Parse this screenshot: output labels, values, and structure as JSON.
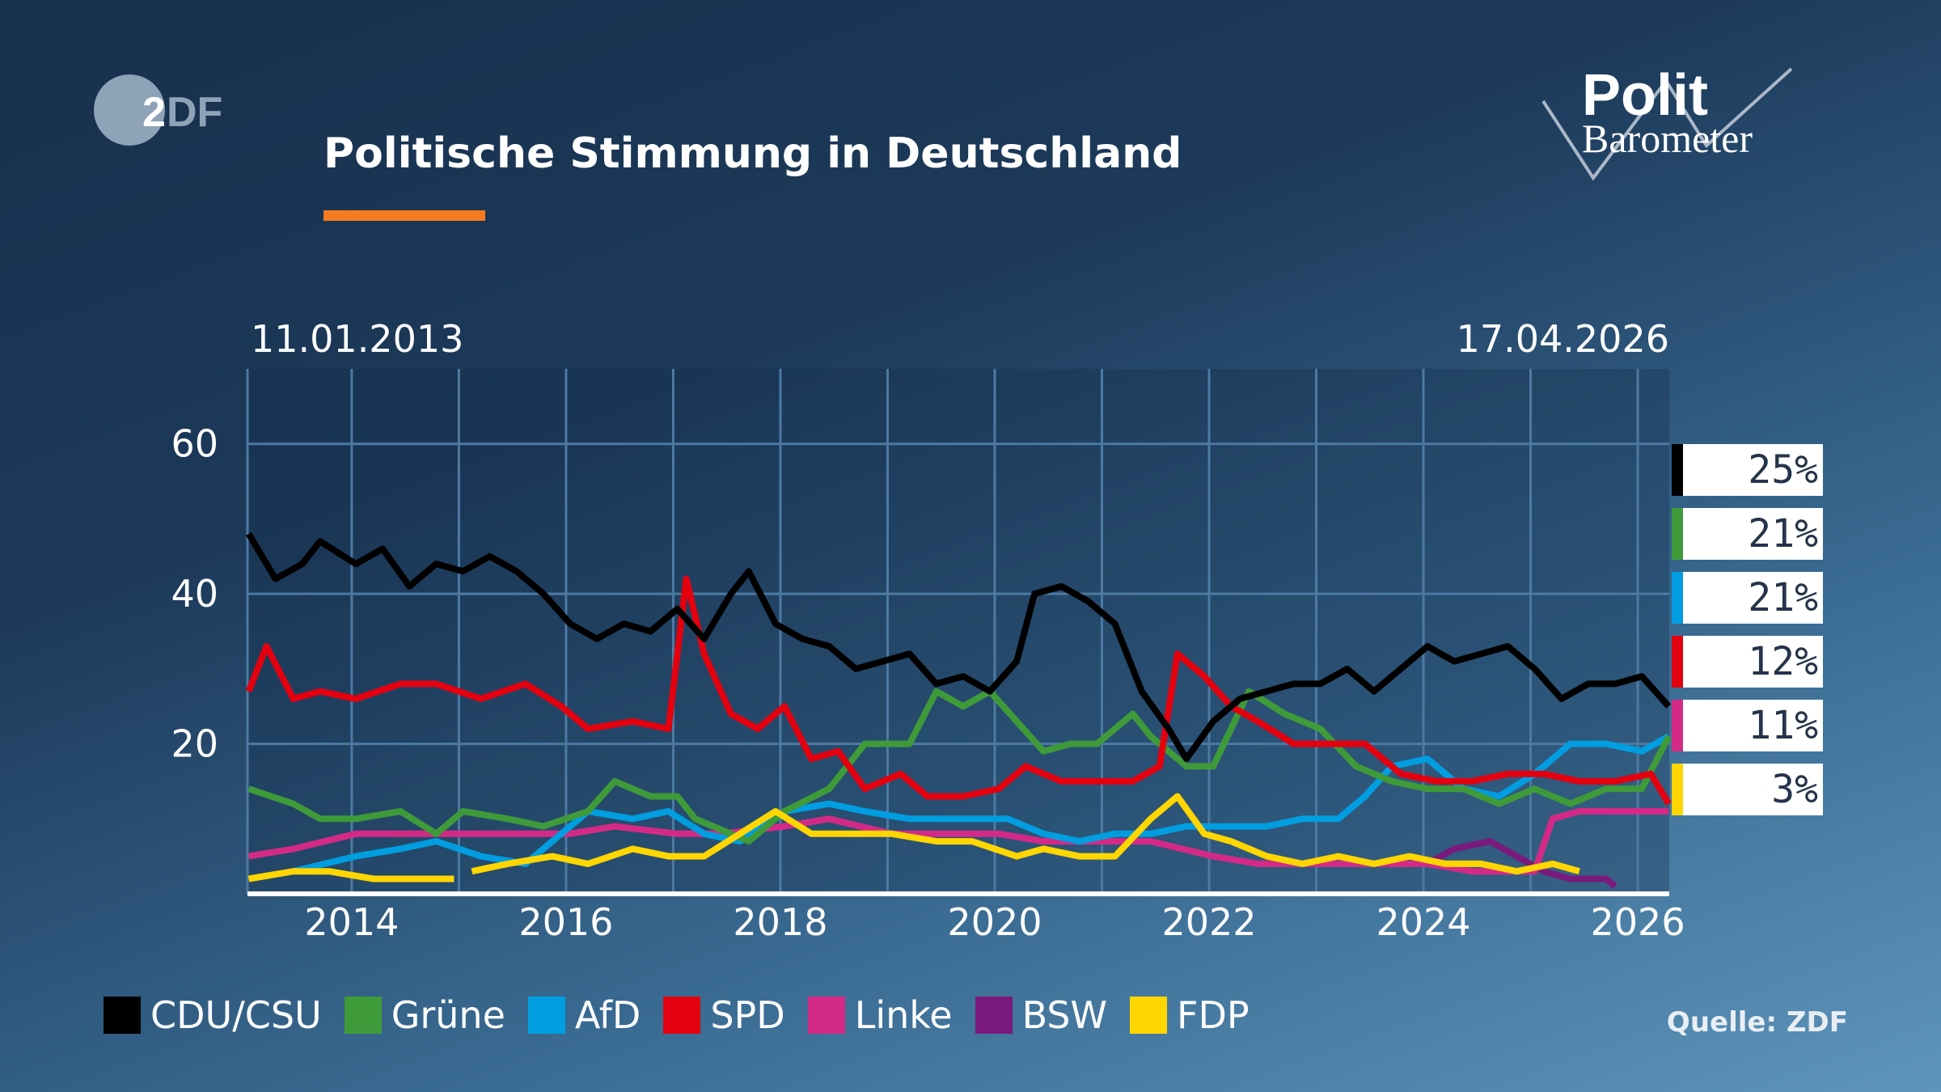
{
  "header": {
    "title": "Politische Stimmung in Deutschland",
    "accent_color": "#f47b20"
  },
  "logos": {
    "broadcaster": "ZDF",
    "program_line1": "Polit",
    "program_line2": "Barometer"
  },
  "source": "Quelle: ZDF",
  "chart_data": {
    "type": "line",
    "title": "Politische Stimmung in Deutschland",
    "start_label": "11.01.2013",
    "end_label": "17.04.2026",
    "x_range": [
      "2013-01-11",
      "2026-04-17"
    ],
    "x_ticks": [
      "2014",
      "2016",
      "2018",
      "2020",
      "2022",
      "2024",
      "2026"
    ],
    "y_ticks": [
      20,
      40,
      60
    ],
    "ylim": [
      0,
      70
    ],
    "grid": true,
    "legend_placement": "bottom",
    "series": [
      {
        "name": "CDU/CSU",
        "color": "#000000",
        "current": "25%",
        "points": [
          [
            "2013-01",
            48
          ],
          [
            "2013-04",
            42
          ],
          [
            "2013-07",
            44
          ],
          [
            "2013-09",
            47
          ],
          [
            "2014-01",
            44
          ],
          [
            "2014-04",
            46
          ],
          [
            "2014-07",
            41
          ],
          [
            "2014-10",
            44
          ],
          [
            "2015-01",
            43
          ],
          [
            "2015-04",
            45
          ],
          [
            "2015-07",
            43
          ],
          [
            "2015-10",
            40
          ],
          [
            "2016-01",
            36
          ],
          [
            "2016-04",
            34
          ],
          [
            "2016-07",
            36
          ],
          [
            "2016-10",
            35
          ],
          [
            "2017-01",
            38
          ],
          [
            "2017-04",
            34
          ],
          [
            "2017-07",
            40
          ],
          [
            "2017-09",
            43
          ],
          [
            "2017-12",
            36
          ],
          [
            "2018-03",
            34
          ],
          [
            "2018-06",
            33
          ],
          [
            "2018-09",
            30
          ],
          [
            "2018-12",
            31
          ],
          [
            "2019-03",
            32
          ],
          [
            "2019-06",
            28
          ],
          [
            "2019-09",
            29
          ],
          [
            "2019-12",
            27
          ],
          [
            "2020-03",
            31
          ],
          [
            "2020-05",
            40
          ],
          [
            "2020-08",
            41
          ],
          [
            "2020-11",
            39
          ],
          [
            "2021-02",
            36
          ],
          [
            "2021-05",
            27
          ],
          [
            "2021-08",
            22
          ],
          [
            "2021-10",
            18
          ],
          [
            "2022-01",
            23
          ],
          [
            "2022-04",
            26
          ],
          [
            "2022-07",
            27
          ],
          [
            "2022-10",
            28
          ],
          [
            "2023-01",
            28
          ],
          [
            "2023-04",
            30
          ],
          [
            "2023-07",
            27
          ],
          [
            "2023-10",
            30
          ],
          [
            "2024-01",
            33
          ],
          [
            "2024-04",
            31
          ],
          [
            "2024-07",
            32
          ],
          [
            "2024-10",
            33
          ],
          [
            "2025-01",
            30
          ],
          [
            "2025-04",
            26
          ],
          [
            "2025-07",
            28
          ],
          [
            "2025-10",
            28
          ],
          [
            "2026-01",
            29
          ],
          [
            "2026-04",
            25
          ]
        ]
      },
      {
        "name": "Grüne",
        "color": "#3f9a3a",
        "current": "21%",
        "points": [
          [
            "2013-01",
            14
          ],
          [
            "2013-06",
            12
          ],
          [
            "2013-09",
            10
          ],
          [
            "2014-01",
            10
          ],
          [
            "2014-06",
            11
          ],
          [
            "2014-10",
            8
          ],
          [
            "2015-01",
            11
          ],
          [
            "2015-06",
            10
          ],
          [
            "2015-10",
            9
          ],
          [
            "2016-03",
            11
          ],
          [
            "2016-06",
            15
          ],
          [
            "2016-10",
            13
          ],
          [
            "2017-01",
            13
          ],
          [
            "2017-03",
            10
          ],
          [
            "2017-09",
            7
          ],
          [
            "2018-01",
            11
          ],
          [
            "2018-06",
            14
          ],
          [
            "2018-10",
            20
          ],
          [
            "2019-03",
            20
          ],
          [
            "2019-06",
            27
          ],
          [
            "2019-09",
            25
          ],
          [
            "2019-12",
            27
          ],
          [
            "2020-03",
            23
          ],
          [
            "2020-06",
            19
          ],
          [
            "2020-09",
            20
          ],
          [
            "2020-12",
            20
          ],
          [
            "2021-04",
            24
          ],
          [
            "2021-06",
            21
          ],
          [
            "2021-10",
            17
          ],
          [
            "2022-01",
            17
          ],
          [
            "2022-05",
            27
          ],
          [
            "2022-09",
            24
          ],
          [
            "2023-01",
            22
          ],
          [
            "2023-05",
            17
          ],
          [
            "2023-09",
            15
          ],
          [
            "2024-01",
            14
          ],
          [
            "2024-05",
            14
          ],
          [
            "2024-09",
            12
          ],
          [
            "2025-01",
            14
          ],
          [
            "2025-05",
            12
          ],
          [
            "2025-09",
            14
          ],
          [
            "2026-01",
            14
          ],
          [
            "2026-04",
            21
          ]
        ]
      },
      {
        "name": "AfD",
        "color": "#009ee0",
        "current": "21%",
        "points": [
          [
            "2013-06",
            3
          ],
          [
            "2014-01",
            5
          ],
          [
            "2014-06",
            6
          ],
          [
            "2014-10",
            7
          ],
          [
            "2015-03",
            5
          ],
          [
            "2015-08",
            4
          ],
          [
            "2015-11",
            7
          ],
          [
            "2016-03",
            11
          ],
          [
            "2016-08",
            10
          ],
          [
            "2016-12",
            11
          ],
          [
            "2017-04",
            8
          ],
          [
            "2017-08",
            7
          ],
          [
            "2018-01",
            11
          ],
          [
            "2018-06",
            12
          ],
          [
            "2018-10",
            11
          ],
          [
            "2019-03",
            10
          ],
          [
            "2019-06",
            10
          ],
          [
            "2019-10",
            10
          ],
          [
            "2020-02",
            10
          ],
          [
            "2020-06",
            8
          ],
          [
            "2020-10",
            7
          ],
          [
            "2021-02",
            8
          ],
          [
            "2021-06",
            8
          ],
          [
            "2021-10",
            9
          ],
          [
            "2022-03",
            9
          ],
          [
            "2022-07",
            9
          ],
          [
            "2022-11",
            10
          ],
          [
            "2023-03",
            10
          ],
          [
            "2023-06",
            13
          ],
          [
            "2023-09",
            17
          ],
          [
            "2024-01",
            18
          ],
          [
            "2024-05",
            14
          ],
          [
            "2024-09",
            13
          ],
          [
            "2025-01",
            16
          ],
          [
            "2025-05",
            20
          ],
          [
            "2025-09",
            20
          ],
          [
            "2026-01",
            19
          ],
          [
            "2026-04",
            21
          ]
        ]
      },
      {
        "name": "SPD",
        "color": "#e3000f",
        "current": "12%",
        "points": [
          [
            "2013-01",
            27
          ],
          [
            "2013-03",
            33
          ],
          [
            "2013-06",
            26
          ],
          [
            "2013-09",
            27
          ],
          [
            "2014-01",
            26
          ],
          [
            "2014-06",
            28
          ],
          [
            "2014-10",
            28
          ],
          [
            "2015-03",
            26
          ],
          [
            "2015-08",
            28
          ],
          [
            "2015-12",
            25
          ],
          [
            "2016-03",
            22
          ],
          [
            "2016-08",
            23
          ],
          [
            "2016-12",
            22
          ],
          [
            "2017-02",
            42
          ],
          [
            "2017-04",
            32
          ],
          [
            "2017-07",
            24
          ],
          [
            "2017-10",
            22
          ],
          [
            "2018-01",
            25
          ],
          [
            "2018-04",
            18
          ],
          [
            "2018-07",
            19
          ],
          [
            "2018-10",
            14
          ],
          [
            "2019-02",
            16
          ],
          [
            "2019-05",
            13
          ],
          [
            "2019-09",
            13
          ],
          [
            "2020-01",
            14
          ],
          [
            "2020-04",
            17
          ],
          [
            "2020-08",
            15
          ],
          [
            "2020-12",
            15
          ],
          [
            "2021-04",
            15
          ],
          [
            "2021-07",
            17
          ],
          [
            "2021-09",
            32
          ],
          [
            "2021-12",
            29
          ],
          [
            "2022-03",
            25
          ],
          [
            "2022-06",
            23
          ],
          [
            "2022-10",
            20
          ],
          [
            "2023-02",
            20
          ],
          [
            "2023-06",
            20
          ],
          [
            "2023-10",
            16
          ],
          [
            "2024-02",
            15
          ],
          [
            "2024-06",
            15
          ],
          [
            "2024-10",
            16
          ],
          [
            "2025-02",
            16
          ],
          [
            "2025-06",
            15
          ],
          [
            "2025-10",
            15
          ],
          [
            "2026-02",
            16
          ],
          [
            "2026-04",
            12
          ]
        ]
      },
      {
        "name": "Linke",
        "color": "#d42a87",
        "current": "11%",
        "points": [
          [
            "2013-01",
            5
          ],
          [
            "2013-06",
            6
          ],
          [
            "2014-01",
            8
          ],
          [
            "2014-06",
            8
          ],
          [
            "2015-01",
            8
          ],
          [
            "2015-06",
            8
          ],
          [
            "2016-01",
            8
          ],
          [
            "2016-06",
            9
          ],
          [
            "2017-01",
            8
          ],
          [
            "2017-06",
            8
          ],
          [
            "2018-01",
            9
          ],
          [
            "2018-06",
            10
          ],
          [
            "2019-01",
            8
          ],
          [
            "2019-06",
            8
          ],
          [
            "2020-01",
            8
          ],
          [
            "2020-06",
            7
          ],
          [
            "2021-01",
            7
          ],
          [
            "2021-06",
            7
          ],
          [
            "2022-01",
            5
          ],
          [
            "2022-06",
            4
          ],
          [
            "2023-01",
            4
          ],
          [
            "2023-06",
            4
          ],
          [
            "2024-01",
            4
          ],
          [
            "2024-06",
            3
          ],
          [
            "2025-01",
            3
          ],
          [
            "2025-03",
            10
          ],
          [
            "2025-06",
            11
          ],
          [
            "2025-10",
            11
          ],
          [
            "2026-01",
            11
          ],
          [
            "2026-04",
            11
          ]
        ]
      },
      {
        "name": "BSW",
        "color": "#7b1a7d",
        "points": [
          [
            "2024-01",
            4
          ],
          [
            "2024-04",
            6
          ],
          [
            "2024-08",
            7
          ],
          [
            "2024-11",
            5
          ],
          [
            "2025-02",
            3
          ],
          [
            "2025-05",
            2
          ],
          [
            "2025-09",
            2
          ],
          [
            "2025-10",
            1
          ]
        ]
      },
      {
        "name": "FDP",
        "color": "#ffd600",
        "current": "3%",
        "points": [
          [
            "2013-01",
            2
          ],
          [
            "2013-06",
            3
          ],
          [
            "2013-10",
            3
          ],
          [
            "2014-03",
            2
          ],
          [
            "2014-09",
            2
          ],
          [
            "2014-12",
            2
          ],
          null,
          [
            "2015-02",
            3
          ],
          [
            "2015-06",
            4
          ],
          [
            "2015-11",
            5
          ],
          [
            "2016-03",
            4
          ],
          [
            "2016-08",
            6
          ],
          [
            "2016-12",
            5
          ],
          [
            "2017-04",
            5
          ],
          [
            "2017-08",
            8
          ],
          [
            "2017-12",
            11
          ],
          [
            "2018-04",
            8
          ],
          [
            "2018-09",
            8
          ],
          [
            "2019-01",
            8
          ],
          [
            "2019-06",
            7
          ],
          [
            "2019-10",
            7
          ],
          [
            "2020-03",
            5
          ],
          [
            "2020-06",
            6
          ],
          [
            "2020-10",
            5
          ],
          [
            "2021-02",
            5
          ],
          [
            "2021-06",
            10
          ],
          [
            "2021-09",
            13
          ],
          [
            "2021-12",
            8
          ],
          [
            "2022-03",
            7
          ],
          [
            "2022-07",
            5
          ],
          [
            "2022-11",
            4
          ],
          [
            "2023-03",
            5
          ],
          [
            "2023-07",
            4
          ],
          [
            "2023-11",
            5
          ],
          [
            "2024-03",
            4
          ],
          [
            "2024-07",
            4
          ],
          [
            "2024-11",
            3
          ],
          [
            "2025-03",
            4
          ],
          [
            "2025-06",
            3
          ]
        ]
      }
    ]
  }
}
